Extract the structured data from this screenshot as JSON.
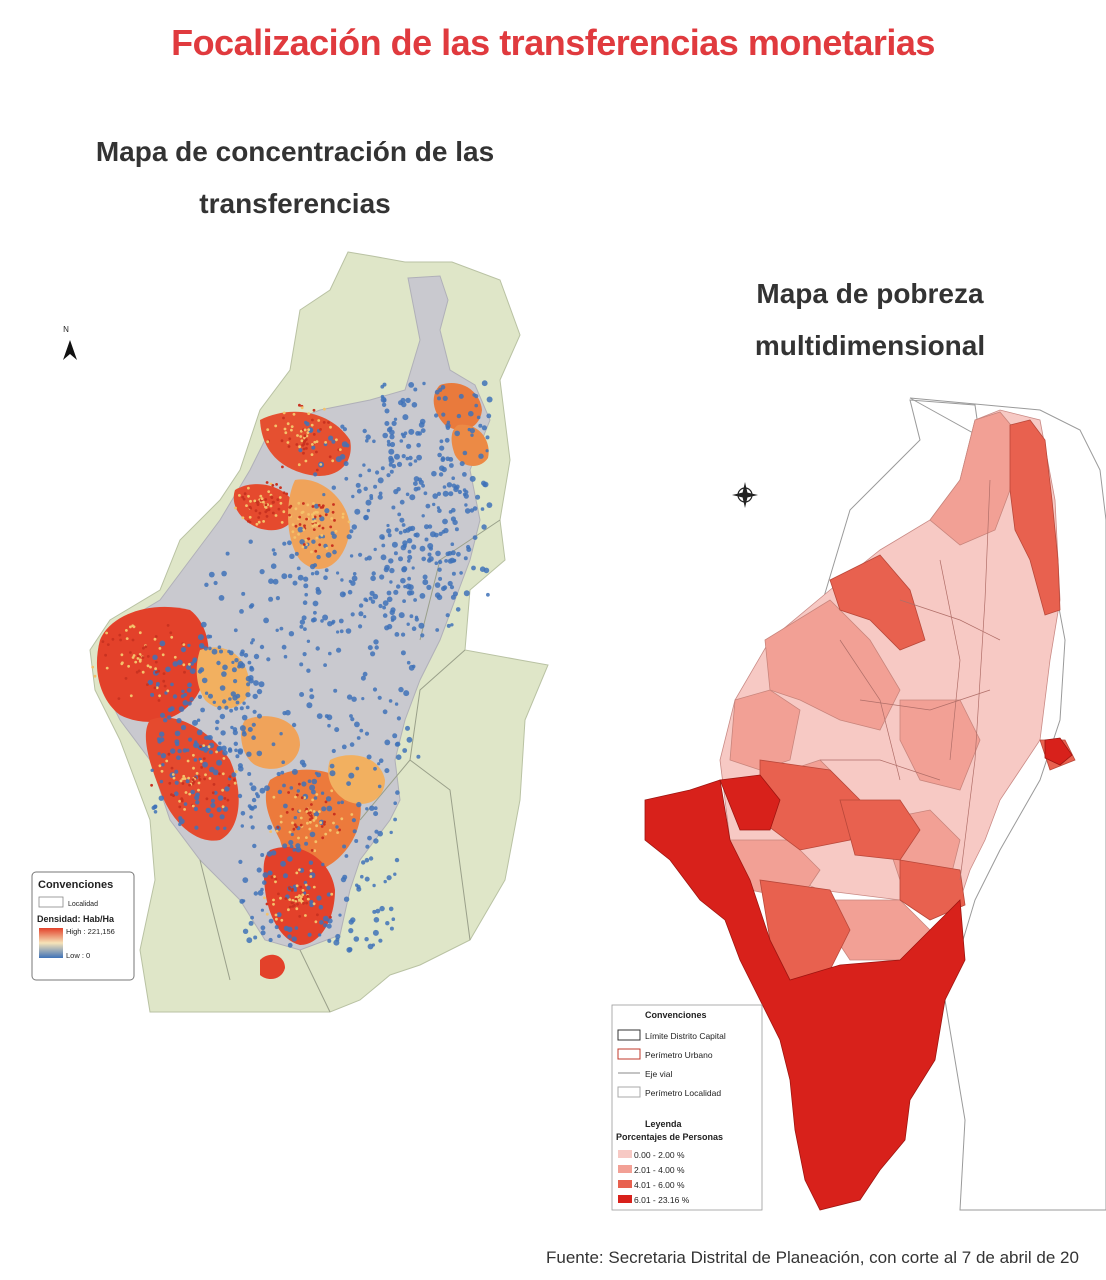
{
  "title": "Focalización de las transferencias monetarias",
  "left_map": {
    "heading": "Mapa de concentración de las transferencias",
    "legend": {
      "title": "Convenciones",
      "locality_label": "Localidad",
      "density_title": "Densidad: Hab/Ha",
      "high_label": "High : 221,156",
      "low_label": "Low : 0"
    },
    "north_label": "N"
  },
  "right_map": {
    "heading": "Mapa de pobreza multidimensional",
    "legend": {
      "title": "Convenciones",
      "items": [
        "Límite Distrito Capital",
        "Perímetro Urbano",
        "Eje vial",
        "Perímetro Localidad"
      ],
      "leyenda_title": "Leyenda",
      "leyenda_subtitle": "Porcentajes de Personas",
      "classes": [
        {
          "label": "0.00 - 2.00 %",
          "color": "#f7c9c4"
        },
        {
          "label": "2.01 - 4.00 %",
          "color": "#f2a095"
        },
        {
          "label": "4.01 - 6.00 %",
          "color": "#e8614f"
        },
        {
          "label": "6.01 - 23.16 %",
          "color": "#d8211b"
        }
      ]
    }
  },
  "source": "Fuente: Secretaria Distrital de Planeación, con corte al 7 de abril de 20",
  "colors": {
    "title": "#e03a3e",
    "rural": "#dfe6c8",
    "urban": "#c9c9cf",
    "density_high": "#e3412a",
    "density_low": "#3f72b8"
  }
}
